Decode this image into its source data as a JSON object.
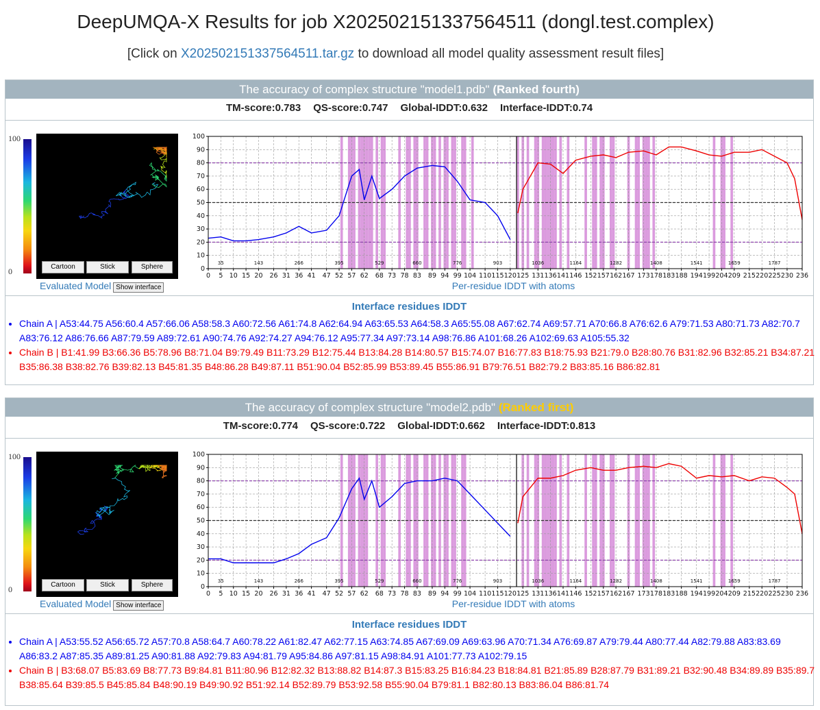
{
  "header": {
    "title": "DeepUMQA-X Results for job X202502151337564511 (dongl.test.complex)",
    "download_prefix": "[Click on",
    "download_link": "X202502151337564511.tar.gz",
    "download_suffix": "to download all model quality assessment result files]"
  },
  "models": [
    {
      "heading": "The accuracy of complex structure \"model1.pdb\"",
      "rank": "(Ranked fourth)",
      "rank_color": "#ffffff",
      "scores": [
        {
          "label": "TM-score:",
          "value": 0.783
        },
        {
          "label": "QS-score:",
          "value": 0.747
        },
        {
          "label": "Global-IDDT:",
          "value": 0.632
        },
        {
          "label": "Interface-IDDT:",
          "value": 0.74
        }
      ],
      "colorbar": {
        "max": 100,
        "min": 0
      },
      "buttons": [
        "Cartoon",
        "Stick",
        "Sphere"
      ],
      "caption": "Evaluated Model",
      "interface_button": "Show interface",
      "chart": {
        "type": "line",
        "xlabel": "Per-residue IDDT with atoms",
        "xlim": [
          0,
          236
        ],
        "ylim": [
          0,
          100
        ],
        "xticks": [
          0,
          5,
          10,
          15,
          20,
          26,
          31,
          36,
          41,
          47,
          52,
          57,
          62,
          68,
          73,
          78,
          83,
          89,
          94,
          99,
          104,
          110,
          115,
          120,
          125,
          131,
          136,
          141,
          146,
          152,
          157,
          162,
          167,
          173,
          178,
          183,
          188,
          194,
          199,
          204,
          209,
          215,
          220,
          225,
          230,
          236
        ],
        "yticks": [
          0,
          10,
          20,
          30,
          40,
          50,
          60,
          70,
          80,
          90,
          100
        ],
        "grid": true,
        "series": [
          {
            "color": "#0000ee",
            "x": [
              0,
              5,
              10,
              15,
              20,
              26,
              31,
              36,
              41,
              47,
              52,
              57,
              60,
              62,
              65,
              68,
              73,
              78,
              83,
              89,
              94,
              99,
              104,
              110,
              115,
              120
            ],
            "values": [
              23,
              24,
              21,
              21,
              22,
              24,
              27,
              32,
              27,
              29,
              40,
              70,
              75,
              52,
              70,
              53,
              60,
              70,
              76,
              78,
              77,
              66,
              52,
              50,
              40,
              22
            ]
          },
          {
            "color": "#ee0000",
            "x": [
              123,
              125,
              131,
              136,
              141,
              146,
              152,
              157,
              162,
              167,
              173,
              178,
              183,
              188,
              194,
              199,
              204,
              209,
              215,
              220,
              225,
              230,
              233,
              236
            ],
            "values": [
              42,
              60,
              80,
              79,
              72,
              82,
              85,
              86,
              84,
              88,
              89,
              86,
              92,
              92,
              89,
              86,
              85,
              88,
              88,
              90,
              85,
              80,
              68,
              37
            ]
          }
        ],
        "bands": {
          "color": "#d58ad8",
          "x": [
            53,
            56,
            57,
            58,
            60,
            61,
            62,
            63,
            64,
            65,
            67,
            69,
            70,
            76,
            79,
            80,
            82,
            83,
            86,
            87,
            89,
            90,
            92,
            94,
            95,
            97,
            98,
            101,
            102,
            105,
            123,
            125,
            127,
            130,
            131,
            133,
            134,
            135,
            136,
            137,
            138,
            140,
            143,
            150,
            153,
            154,
            156,
            157,
            160,
            161,
            167,
            170,
            171,
            173,
            174,
            175,
            177,
            201,
            204,
            205,
            208
          ]
        },
        "hlines": [
          {
            "value": 20,
            "color": "#8e44ad"
          },
          {
            "value": 50,
            "color": "#333333"
          },
          {
            "value": 80,
            "color": "#8e44ad"
          }
        ],
        "boundary": 122.5,
        "annotations": {
          "x": [
            5,
            20,
            36,
            52,
            68,
            83,
            99,
            115,
            131,
            146,
            162,
            178,
            194,
            209,
            225
          ],
          "labels": [
            35,
            143,
            266,
            395,
            529,
            660,
            776,
            903,
            1036,
            1164,
            1282,
            1408,
            1541,
            1659,
            1787
          ]
        }
      },
      "interface_title": "Interface residues IDDT",
      "chains": [
        {
          "label": "Chain A |",
          "color": "#0000ee",
          "items": [
            "A53:44.75",
            "A56:60.4",
            "A57:66.06",
            "A58:58.3",
            "A60:72.56",
            "A61:74.8",
            "A62:64.94",
            "A63:65.53",
            "A64:58.3",
            "A65:55.08",
            "A67:62.74",
            "A69:57.71",
            "A70:66.8",
            "A76:62.6",
            "A79:71.53",
            "A80:71.73",
            "A82:70.7",
            "A83:76.12",
            "A86:76.66",
            "A87:79.59",
            "A89:72.61",
            "A90:74.76",
            "A92:74.27",
            "A94:76.12",
            "A95:77.34",
            "A97:73.14",
            "A98:76.86",
            "A101:68.26",
            "A102:69.63",
            "A105:55.32"
          ]
        },
        {
          "label": "Chain B |",
          "color": "#ee0000",
          "items": [
            "B1:41.99",
            "B3:66.36",
            "B5:78.96",
            "B8:71.04",
            "B9:79.49",
            "B11:73.29",
            "B12:75.44",
            "B13:84.28",
            "B14:80.57",
            "B15:74.07",
            "B16:77.83",
            "B18:75.93",
            "B21:79.0",
            "B28:80.76",
            "B31:82.96",
            "B32:85.21",
            "B34:87.21",
            "B35:86.38",
            "B38:82.76",
            "B39:82.13",
            "B45:81.35",
            "B48:86.28",
            "B49:87.11",
            "B51:90.04",
            "B52:85.99",
            "B53:89.45",
            "B55:86.91",
            "B79:76.51",
            "B82:79.2",
            "B83:85.16",
            "B86:82.81"
          ]
        }
      ]
    },
    {
      "heading": "The accuracy of complex structure \"model2.pdb\"",
      "rank": "(Ranked first)",
      "rank_color": "#ffcc00",
      "scores": [
        {
          "label": "TM-score:",
          "value": 0.774
        },
        {
          "label": "QS-score:",
          "value": 0.722
        },
        {
          "label": "Global-IDDT:",
          "value": 0.662
        },
        {
          "label": "Interface-IDDT:",
          "value": 0.813
        }
      ],
      "colorbar": {
        "max": 100,
        "min": 0
      },
      "buttons": [
        "Cartoon",
        "Stick",
        "Sphere"
      ],
      "caption": "Evaluated Model",
      "interface_button": "Show interface",
      "chart": {
        "type": "line",
        "xlabel": "Per-residue IDDT with atoms",
        "xlim": [
          0,
          236
        ],
        "ylim": [
          0,
          100
        ],
        "xticks": [
          0,
          5,
          10,
          15,
          20,
          26,
          31,
          36,
          41,
          47,
          52,
          57,
          62,
          68,
          73,
          78,
          83,
          89,
          94,
          99,
          104,
          110,
          115,
          120,
          125,
          131,
          136,
          141,
          146,
          152,
          157,
          162,
          167,
          173,
          178,
          183,
          188,
          194,
          199,
          204,
          209,
          215,
          220,
          225,
          230,
          236
        ],
        "yticks": [
          0,
          10,
          20,
          30,
          40,
          50,
          60,
          70,
          80,
          90,
          100
        ],
        "grid": true,
        "series": [
          {
            "color": "#0000ee",
            "x": [
              0,
              5,
              10,
              15,
              20,
              26,
              31,
              36,
              41,
              47,
              52,
              57,
              60,
              62,
              65,
              68,
              73,
              78,
              83,
              89,
              94,
              99,
              104,
              110,
              115,
              120
            ],
            "values": [
              21,
              21,
              18,
              18,
              18,
              18,
              21,
              25,
              32,
              37,
              52,
              74,
              82,
              66,
              80,
              60,
              68,
              78,
              80,
              80,
              82,
              80,
              70,
              58,
              48,
              38
            ]
          },
          {
            "color": "#ee0000",
            "x": [
              123,
              125,
              131,
              136,
              141,
              146,
              152,
              157,
              162,
              167,
              173,
              178,
              183,
              188,
              194,
              199,
              204,
              209,
              215,
              220,
              225,
              230,
              233,
              236
            ],
            "values": [
              48,
              68,
              82,
              82,
              84,
              88,
              90,
              88,
              88,
              90,
              91,
              90,
              93,
              91,
              82,
              84,
              83,
              84,
              80,
              83,
              82,
              75,
              70,
              40
            ]
          }
        ],
        "bands": {
          "color": "#d58ad8",
          "x": [
            53,
            56,
            57,
            58,
            60,
            61,
            62,
            63,
            67,
            69,
            70,
            76,
            79,
            80,
            82,
            83,
            86,
            87,
            89,
            90,
            92,
            94,
            95,
            97,
            98,
            101,
            102,
            125,
            127,
            130,
            131,
            133,
            134,
            135,
            136,
            137,
            138,
            140,
            143,
            150,
            153,
            154,
            156,
            157,
            160,
            161,
            167,
            170,
            171,
            173,
            174,
            175,
            177,
            201,
            204,
            205,
            208
          ]
        },
        "hlines": [
          {
            "value": 20,
            "color": "#8e44ad"
          },
          {
            "value": 50,
            "color": "#333333"
          },
          {
            "value": 80,
            "color": "#8e44ad"
          }
        ],
        "boundary": 122.5,
        "annotations": {
          "x": [
            5,
            20,
            36,
            52,
            68,
            83,
            99,
            115,
            131,
            146,
            162,
            178,
            194,
            209,
            225
          ],
          "labels": [
            35,
            143,
            266,
            395,
            529,
            660,
            776,
            903,
            1036,
            1164,
            1282,
            1408,
            1541,
            1659,
            1787
          ]
        }
      },
      "interface_title": "Interface residues IDDT",
      "chains": [
        {
          "label": "Chain A |",
          "color": "#0000ee",
          "items": [
            "A53:55.52",
            "A56:65.72",
            "A57:70.8",
            "A58:64.7",
            "A60:78.22",
            "A61:82.47",
            "A62:77.15",
            "A63:74.85",
            "A67:69.09",
            "A69:63.96",
            "A70:71.34",
            "A76:69.87",
            "A79:79.44",
            "A80:77.44",
            "A82:79.88",
            "A83:83.69",
            "A86:83.2",
            "A87:85.35",
            "A89:81.25",
            "A90:81.88",
            "A92:79.83",
            "A94:81.79",
            "A95:84.86",
            "A97:81.15",
            "A98:84.91",
            "A101:77.73",
            "A102:79.15"
          ]
        },
        {
          "label": "Chain B |",
          "color": "#ee0000",
          "items": [
            "B3:68.07",
            "B5:83.69",
            "B8:77.73",
            "B9:84.81",
            "B11:80.96",
            "B12:82.32",
            "B13:88.82",
            "B14:87.3",
            "B15:83.25",
            "B16:84.23",
            "B18:84.81",
            "B21:85.89",
            "B28:87.79",
            "B31:89.21",
            "B32:90.48",
            "B34:89.89",
            "B35:89.7",
            "B38:85.64",
            "B39:85.5",
            "B45:85.84",
            "B48:90.19",
            "B49:90.92",
            "B51:92.14",
            "B52:89.79",
            "B53:92.58",
            "B55:90.04",
            "B79:81.1",
            "B82:80.13",
            "B83:86.04",
            "B86:81.74"
          ]
        }
      ]
    }
  ]
}
